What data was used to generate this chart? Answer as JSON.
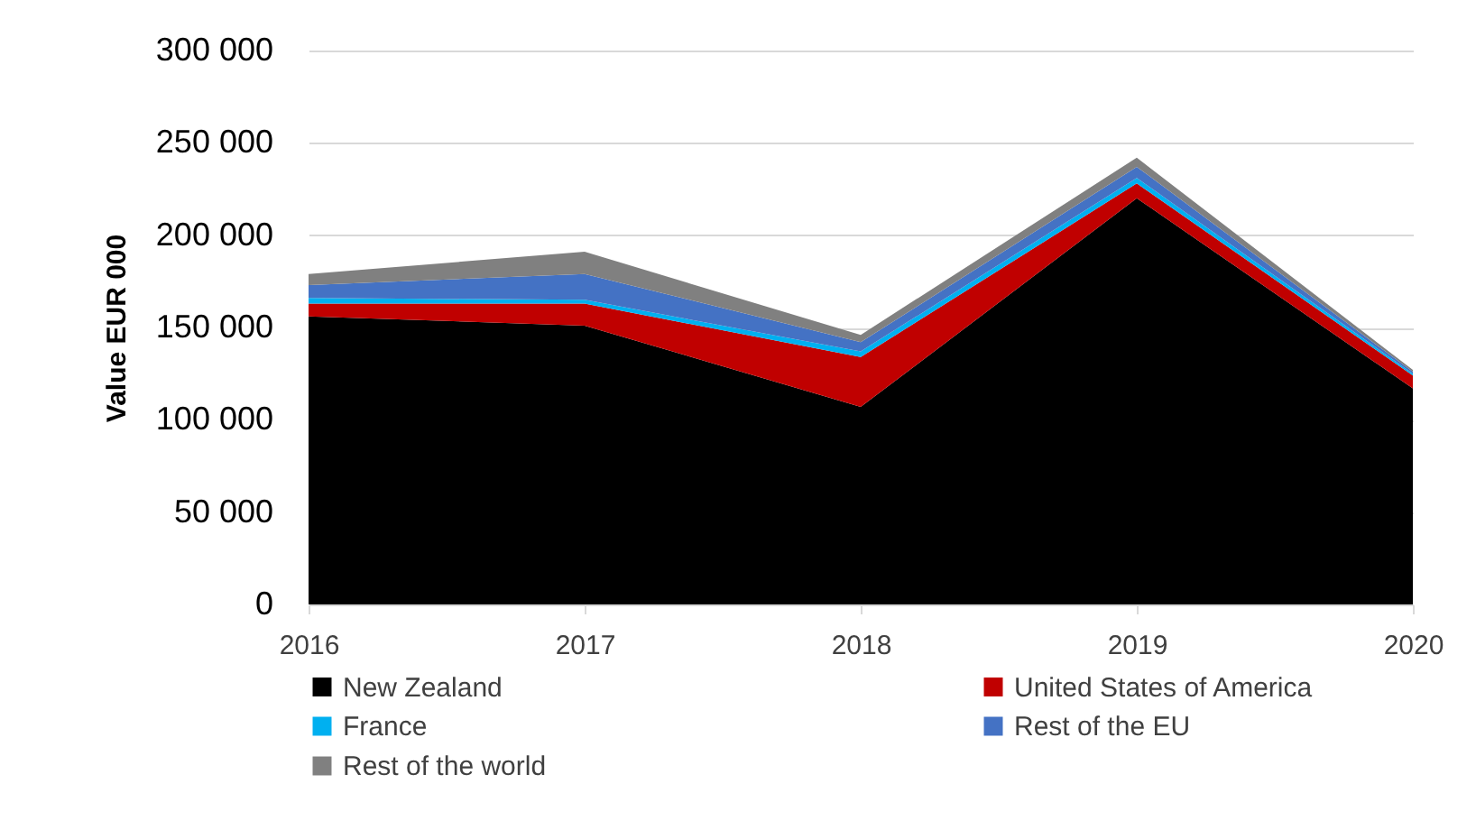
{
  "chart_data": {
    "type": "area",
    "stacked": true,
    "ylabel": "Value EUR 000",
    "categories": [
      "2016",
      "2017",
      "2018",
      "2019",
      "2020"
    ],
    "series": [
      {
        "name": "New Zealand",
        "color": "#000000",
        "values": [
          156000,
          151000,
          107000,
          220000,
          117000
        ]
      },
      {
        "name": "United States of America",
        "color": "#c00000",
        "values": [
          7000,
          12000,
          27000,
          8000,
          7000
        ]
      },
      {
        "name": "France",
        "color": "#00b0f0",
        "values": [
          3000,
          2000,
          3000,
          3000,
          1000
        ]
      },
      {
        "name": "Rest of the EU",
        "color": "#4472c4",
        "values": [
          7000,
          14000,
          5000,
          6000,
          1000
        ]
      },
      {
        "name": "Rest of the world",
        "color": "#808080",
        "values": [
          6000,
          12000,
          4000,
          5000,
          1000
        ]
      }
    ],
    "ylim": [
      0,
      300000
    ],
    "yticks": [
      0,
      {
        "value": 50000,
        "label": "50 000"
      },
      {
        "value": 100000,
        "label": "100 000"
      },
      {
        "value": 150000,
        "label": "150 000"
      },
      {
        "value": 200000,
        "label": "200 000"
      },
      {
        "value": 250000,
        "label": "250 000"
      },
      {
        "value": 300000,
        "label": "300 000"
      }
    ],
    "grid": "y",
    "legend": "bottom"
  }
}
